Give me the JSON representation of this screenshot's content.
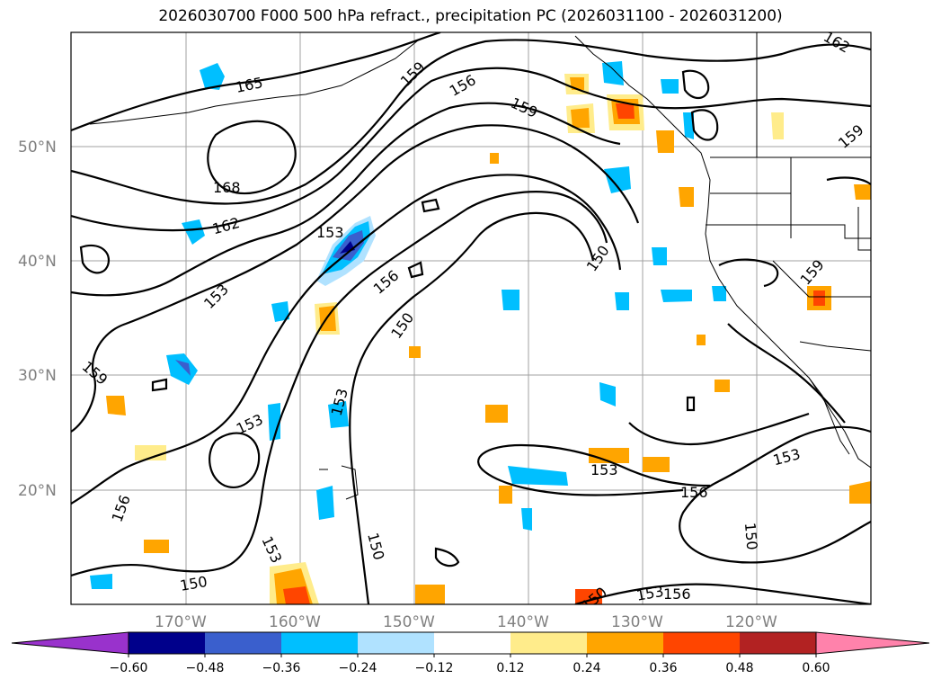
{
  "title": "2026030700 F000 500 hPa refract., precipitation PC (2026031100 - 2026031200)",
  "lat_labels": [
    "50°N",
    "40°N",
    "30°N",
    "20°N"
  ],
  "lon_labels": [
    "170°W",
    "160°W",
    "150°W",
    "140°W",
    "130°W",
    "120°W"
  ],
  "contour_labels": [
    "165",
    "168",
    "162",
    "159",
    "156",
    "159",
    "153",
    "153",
    "156",
    "150",
    "150",
    "153",
    "153",
    "159",
    "153",
    "156",
    "150",
    "153",
    "150",
    "153",
    "156",
    "150",
    "159",
    "153",
    "150",
    "162",
    "156",
    "159"
  ],
  "colorbar": {
    "colors": [
      "#9932cc",
      "#00008b",
      "#3a5fcd",
      "#00bfff",
      "#b0e2ff",
      "#ffffff",
      "#ffec8b",
      "#ffa500",
      "#ff4500",
      "#b22222",
      "#ff82ab"
    ],
    "ticks": [
      "−0.60",
      "−0.48",
      "−0.36",
      "−0.24",
      "−0.12",
      "0.12",
      "0.24",
      "0.36",
      "0.48",
      "0.60"
    ]
  }
}
